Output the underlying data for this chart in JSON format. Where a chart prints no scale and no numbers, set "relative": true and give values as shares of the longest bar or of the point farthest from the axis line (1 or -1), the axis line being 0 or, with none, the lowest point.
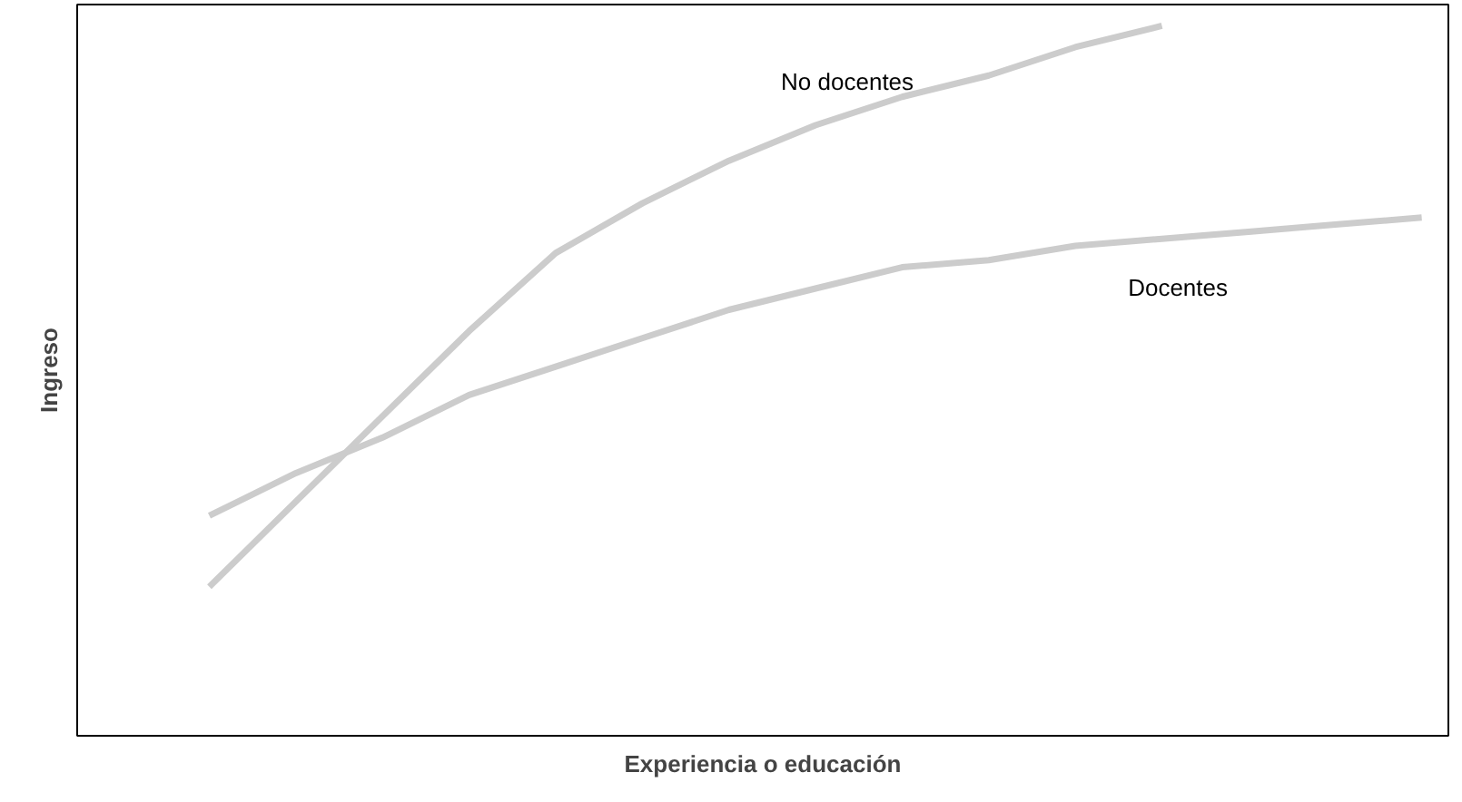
{
  "chart_data": {
    "type": "line",
    "relative": true,
    "xlabel": "Experiencia o educación",
    "ylabel": "Ingreso",
    "line_style": "solid",
    "categories": [
      null,
      null,
      null,
      null,
      null,
      null,
      null,
      null,
      null,
      null,
      null,
      null,
      null,
      null,
      null
    ],
    "series": [
      {
        "name": "No docentes",
        "color": "#cccccc",
        "values": [
          0.21,
          0.33,
          0.45,
          0.57,
          0.68,
          0.75,
          0.81,
          0.86,
          0.9,
          0.93,
          0.97,
          1.0,
          null,
          null,
          null
        ]
      },
      {
        "name": "Docentes",
        "color": "#cccccc",
        "values": [
          0.31,
          0.37,
          0.42,
          0.48,
          0.52,
          0.56,
          0.6,
          0.63,
          0.66,
          0.67,
          0.69,
          0.7,
          0.71,
          0.72,
          0.73
        ]
      }
    ]
  }
}
